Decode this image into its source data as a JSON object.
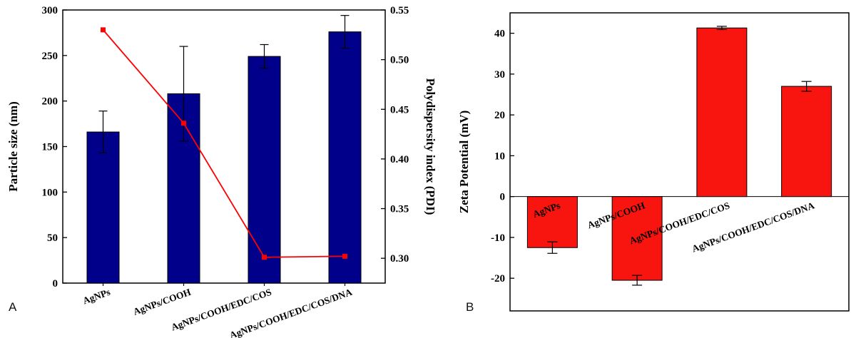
{
  "figure": {
    "background": "#ffffff",
    "panel_letters": [
      "A",
      "B"
    ]
  },
  "chart_data": [
    {
      "type": "bar",
      "panel_label": "A",
      "categories": [
        "AgNPs",
        "AgNPs/COOH",
        "AgNPs/COOH/EDC/COS",
        "AgNPs/COOH/EDC/COS/DNA"
      ],
      "series": [
        {
          "name": "Particle size",
          "type": "bar",
          "axis": "left",
          "color": "#00008B",
          "values": [
            166,
            208,
            249,
            276
          ],
          "errors": [
            23,
            52,
            13,
            18
          ]
        },
        {
          "name": "Polydispersity index",
          "type": "line",
          "axis": "right",
          "color": "#FE0000",
          "marker": "square",
          "values": [
            0.53,
            0.436,
            0.301,
            0.302
          ]
        }
      ],
      "left_axis": {
        "label": "Particle size (nm)",
        "min": 0,
        "max": 300,
        "ticks": [
          "0",
          "50",
          "100",
          "150",
          "200",
          "250",
          "300"
        ]
      },
      "right_axis": {
        "label": "Polydispersity index (PDI)",
        "min": 0.275,
        "max": 0.55,
        "ticks": [
          "0.30",
          "0.35",
          "0.40",
          "0.45",
          "0.50",
          "0.55"
        ]
      },
      "grid": false,
      "legend": "none"
    },
    {
      "type": "bar",
      "panel_label": "B",
      "categories": [
        "AgNPs",
        "AgNPs/COOH",
        "AgNPs/COOH/EDC/COS",
        "AgNPs/COOH/EDC/COS/DNA"
      ],
      "series": [
        {
          "name": "Zeta Potential",
          "type": "bar",
          "axis": "left",
          "color": "#F8150F",
          "values": [
            -12.5,
            -20.5,
            41.3,
            27.0
          ],
          "errors": [
            1.4,
            1.2,
            0.4,
            1.2
          ]
        }
      ],
      "left_axis": {
        "label": "Zeta Potential (mV)",
        "min": -28,
        "max": 45,
        "ticks": [
          "-20",
          "-10",
          "0",
          "10",
          "20",
          "30",
          "40"
        ]
      },
      "grid": false,
      "legend": "none"
    }
  ]
}
